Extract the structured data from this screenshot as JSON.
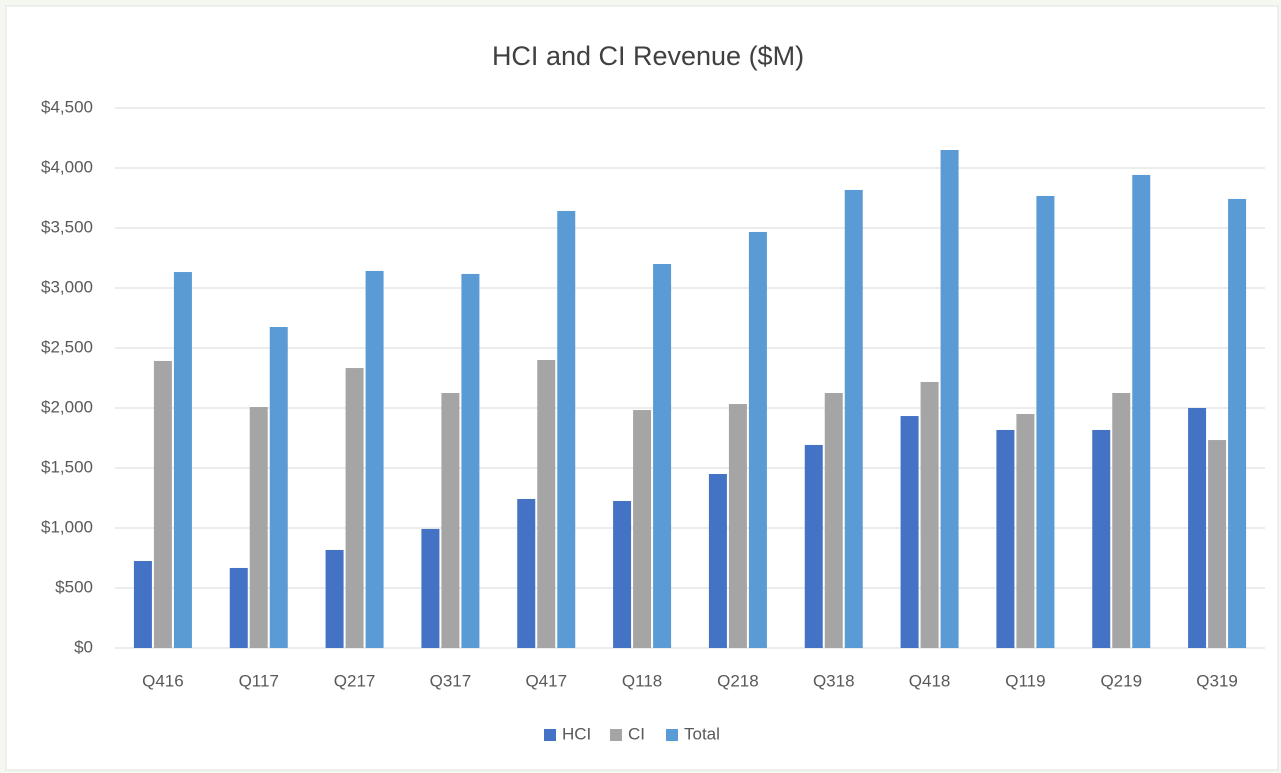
{
  "chart_data": {
    "type": "bar",
    "title": "HCI and CI Revenue ($M)",
    "categories": [
      "Q416",
      "Q117",
      "Q217",
      "Q317",
      "Q417",
      "Q118",
      "Q218",
      "Q318",
      "Q418",
      "Q119",
      "Q219",
      "Q319"
    ],
    "series": [
      {
        "name": "HCI",
        "color": "#4472c4",
        "values": [
          725,
          667,
          817,
          992,
          1242,
          1225,
          1450,
          1692,
          1933,
          1817,
          1817,
          2000
        ]
      },
      {
        "name": "CI",
        "color": "#a5a5a5",
        "values": [
          2392,
          2008,
          2333,
          2125,
          2400,
          1983,
          2033,
          2125,
          2217,
          1950,
          2125,
          1733
        ]
      },
      {
        "name": "Total",
        "color": "#5b9bd5",
        "values": [
          3133,
          2675,
          3142,
          3117,
          3642,
          3200,
          3467,
          3817,
          4150,
          3767,
          3942,
          3742
        ]
      }
    ],
    "ylim": [
      0,
      4500
    ],
    "yticks": [
      {
        "value": 0,
        "label": "$0"
      },
      {
        "value": 500,
        "label": "$500"
      },
      {
        "value": 1000,
        "label": "$1,000"
      },
      {
        "value": 1500,
        "label": "$1,500"
      },
      {
        "value": 2000,
        "label": "$2,000"
      },
      {
        "value": 2500,
        "label": "$2,500"
      },
      {
        "value": 3000,
        "label": "$3,000"
      },
      {
        "value": 3500,
        "label": "$3,500"
      },
      {
        "value": 4000,
        "label": "$4,000"
      },
      {
        "value": 4500,
        "label": "$4,500"
      }
    ],
    "grid": true,
    "legend": "bottom"
  }
}
